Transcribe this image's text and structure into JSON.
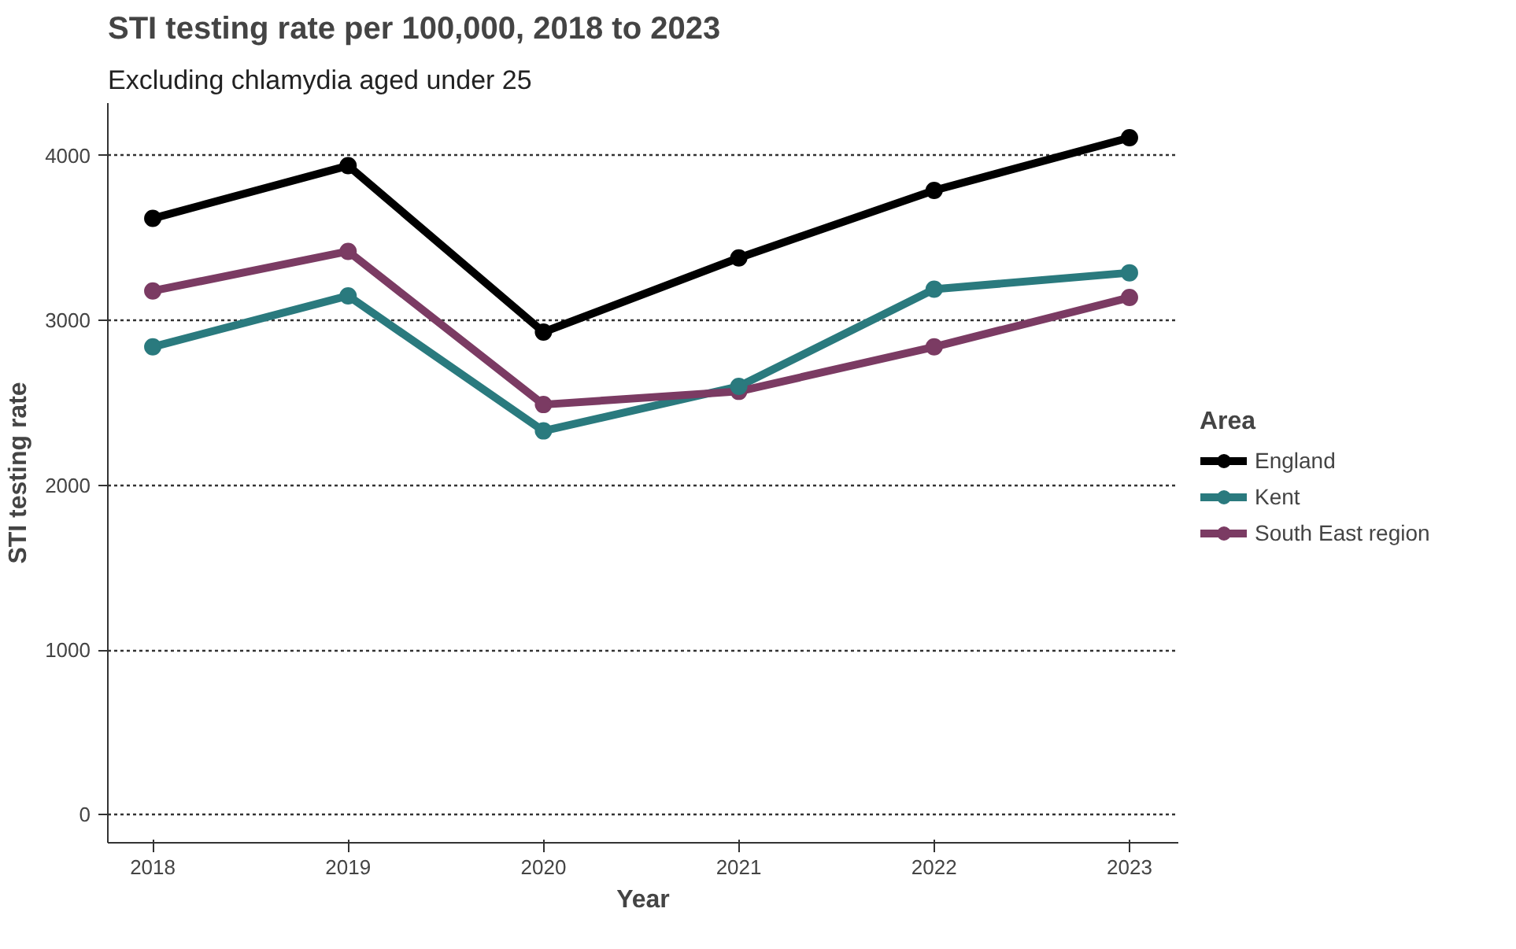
{
  "chart_data": {
    "type": "line",
    "title": "STI testing rate per 100,000, 2018 to 2023",
    "subtitle": "Excluding chlamydia aged under 25",
    "xlabel": "Year",
    "ylabel": "STI testing rate",
    "legend_title": "Area",
    "x": [
      2018,
      2019,
      2020,
      2021,
      2022,
      2023
    ],
    "series": [
      {
        "name": "England",
        "color": "#000000",
        "values": [
          3620,
          3940,
          2930,
          3380,
          3790,
          4110
        ]
      },
      {
        "name": "Kent",
        "color": "#2a7a7e",
        "values": [
          2840,
          3150,
          2330,
          2600,
          3190,
          3290
        ]
      },
      {
        "name": "South East region",
        "color": "#7b3b63",
        "values": [
          3180,
          3420,
          2490,
          2570,
          2840,
          3140
        ]
      }
    ],
    "xlim": [
      2017.77,
      2023.25
    ],
    "xticks": [
      2018,
      2019,
      2020,
      2021,
      2022,
      2023
    ],
    "ylim": [
      -170,
      4320
    ],
    "yticks": [
      0,
      1000,
      2000,
      3000,
      4000
    ],
    "grid": "y",
    "legend": "right",
    "marker": "circle",
    "line_style": "solid"
  }
}
